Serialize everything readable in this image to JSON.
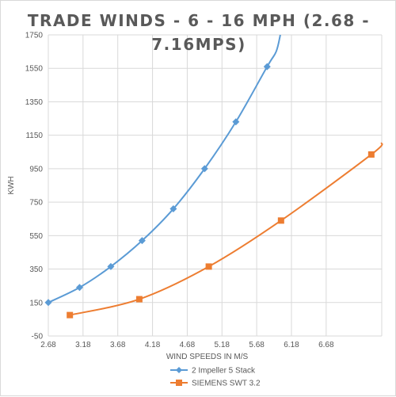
{
  "chart_data": {
    "type": "line",
    "title_lines": [
      "TRADE WINDS  - 6 - 16 MPH (2.68 -",
      "7.16MPS)"
    ],
    "xlabel": "WIND SPEEDS IN M/S",
    "ylabel": "KWH",
    "xlim": [
      2.68,
      7.48
    ],
    "ylim": [
      -50,
      1750
    ],
    "x_ticks": [
      "2.68",
      "3.18",
      "3.68",
      "4.18",
      "4.68",
      "5.18",
      "5.68",
      "6.18",
      "6.68"
    ],
    "y_ticks": [
      "1750",
      "1550",
      "1350",
      "1150",
      "950",
      "750",
      "550",
      "350",
      "150",
      "-50"
    ],
    "grid": true,
    "legend_position": "bottom",
    "series": [
      {
        "name": "2 Impeller 5 Stack",
        "color": "#5b9bd5",
        "marker": "diamond",
        "points": [
          [
            2.68,
            150
          ],
          [
            3.13,
            240
          ],
          [
            3.58,
            365
          ],
          [
            4.03,
            520
          ],
          [
            4.48,
            710
          ],
          [
            4.93,
            950
          ],
          [
            5.38,
            1230
          ],
          [
            5.83,
            1560
          ]
        ],
        "curve_extension": [
          [
            5.96,
            1650
          ],
          [
            6.02,
            1750
          ]
        ]
      },
      {
        "name": "SIEMENS SWT 3.2",
        "color": "#ed7d31",
        "marker": "square",
        "points": [
          [
            2.99,
            75
          ],
          [
            3.99,
            170
          ],
          [
            4.99,
            365
          ],
          [
            6.03,
            640
          ],
          [
            7.33,
            1035
          ]
        ],
        "curve_extension": [
          [
            7.48,
            1105
          ]
        ]
      }
    ]
  }
}
